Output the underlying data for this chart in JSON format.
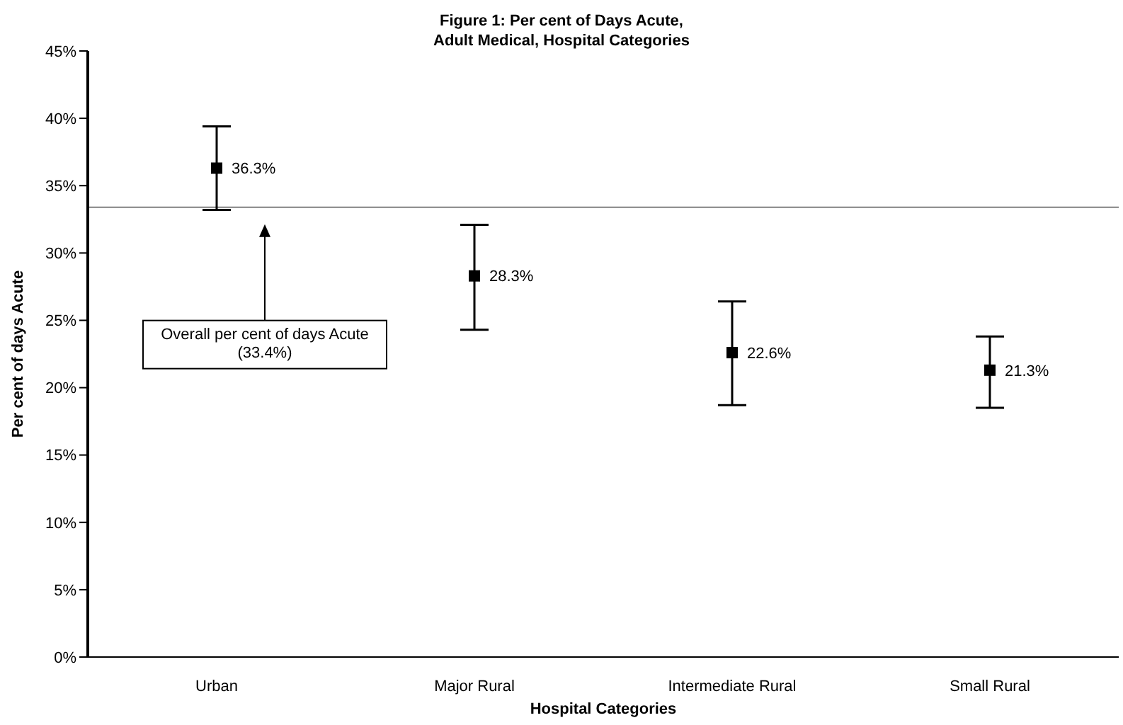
{
  "chart_data": {
    "type": "scatter",
    "title": "Figure 1: Per cent of Days Acute,\nAdult Medical, Hospital Categories",
    "xlabel": "Hospital Categories",
    "ylabel": "Per cent of days Acute",
    "categories": [
      "Urban",
      "Major Rural",
      "Intermediate Rural",
      "Small Rural"
    ],
    "values": [
      36.3,
      28.3,
      22.6,
      21.3
    ],
    "value_labels": [
      "36.3%",
      "28.3%",
      "22.6%",
      "21.3%"
    ],
    "errors": [
      [
        33.2,
        39.4
      ],
      [
        24.3,
        32.1
      ],
      [
        18.7,
        26.4
      ],
      [
        18.5,
        23.8
      ]
    ],
    "color": "#000000",
    "marker": "square",
    "ylim": [
      0,
      45
    ],
    "yticks": [
      {
        "value": 0,
        "label": "0%"
      },
      {
        "value": 5,
        "label": "5%"
      },
      {
        "value": 10,
        "label": "10%"
      },
      {
        "value": 15,
        "label": "15%"
      },
      {
        "value": 20,
        "label": "20%"
      },
      {
        "value": 25,
        "label": "25%"
      },
      {
        "value": 30,
        "label": "30%"
      },
      {
        "value": 35,
        "label": "35%"
      },
      {
        "value": 40,
        "label": "40%"
      },
      {
        "value": 45,
        "label": "45%"
      }
    ],
    "ref_lines": [
      {
        "axis": "y",
        "value": 33.4,
        "color": "#808080"
      }
    ],
    "annotations": [
      "Overall per cent of days Acute\n(33.4%)"
    ],
    "grid": false,
    "legend": false
  }
}
